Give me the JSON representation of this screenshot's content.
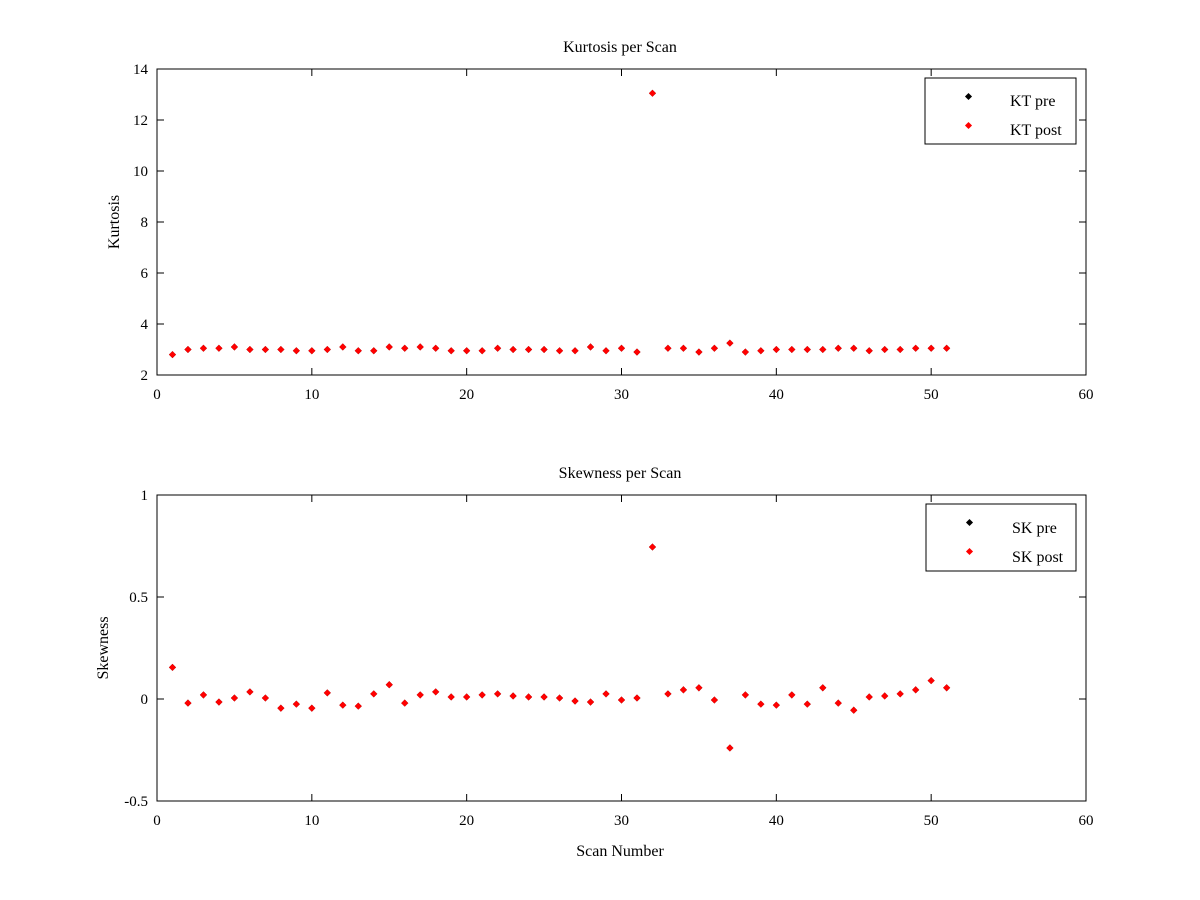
{
  "chart_data": [
    {
      "type": "scatter",
      "title": "Kurtosis per Scan",
      "xlabel": "",
      "ylabel": "Kurtosis",
      "xlim": [
        0,
        60
      ],
      "ylim": [
        2,
        14
      ],
      "xticks": [
        0,
        10,
        20,
        30,
        40,
        50,
        60
      ],
      "yticks": [
        2,
        4,
        6,
        8,
        10,
        12,
        14
      ],
      "legend_position": "top-right",
      "grid": false,
      "x": [
        1,
        2,
        3,
        4,
        5,
        6,
        7,
        8,
        9,
        10,
        11,
        12,
        13,
        14,
        15,
        16,
        17,
        18,
        19,
        20,
        21,
        22,
        23,
        24,
        25,
        26,
        27,
        28,
        29,
        30,
        31,
        32,
        33,
        34,
        35,
        36,
        37,
        38,
        39,
        40,
        41,
        42,
        43,
        44,
        45,
        46,
        47,
        48,
        49,
        50,
        51
      ],
      "series": [
        {
          "name": "KT pre",
          "color": "#000000",
          "values": [
            2.8,
            3.0,
            3.05,
            3.05,
            3.1,
            3.0,
            3.0,
            3.0,
            2.95,
            2.95,
            3.0,
            3.1,
            2.95,
            2.95,
            3.1,
            3.05,
            3.1,
            3.05,
            2.95,
            2.95,
            2.95,
            3.05,
            3.0,
            3.0,
            3.0,
            2.95,
            2.95,
            3.1,
            2.95,
            3.05,
            2.9,
            13.05,
            3.05,
            3.05,
            2.9,
            3.05,
            3.25,
            2.9,
            2.95,
            3.0,
            3.0,
            3.0,
            3.0,
            3.05,
            3.05,
            2.95,
            3.0,
            3.0,
            3.05,
            3.05,
            3.05
          ]
        },
        {
          "name": "KT post",
          "color": "#ff0000",
          "values": [
            2.8,
            3.0,
            3.05,
            3.05,
            3.1,
            3.0,
            3.0,
            3.0,
            2.95,
            2.95,
            3.0,
            3.1,
            2.95,
            2.95,
            3.1,
            3.05,
            3.1,
            3.05,
            2.95,
            2.95,
            2.95,
            3.05,
            3.0,
            3.0,
            3.0,
            2.95,
            2.95,
            3.1,
            2.95,
            3.05,
            2.9,
            13.05,
            3.05,
            3.05,
            2.9,
            3.05,
            3.25,
            2.9,
            2.95,
            3.0,
            3.0,
            3.0,
            3.0,
            3.05,
            3.05,
            2.95,
            3.0,
            3.0,
            3.05,
            3.05,
            3.05
          ]
        }
      ]
    },
    {
      "type": "scatter",
      "title": "Skewness per Scan",
      "xlabel": "Scan Number",
      "ylabel": "Skewness",
      "xlim": [
        0,
        60
      ],
      "ylim": [
        -0.5,
        1
      ],
      "xticks": [
        0,
        10,
        20,
        30,
        40,
        50,
        60
      ],
      "yticks": [
        -0.5,
        0,
        0.5,
        1
      ],
      "ytick_labels": [
        "-0.5",
        "0",
        "0.5",
        "1"
      ],
      "legend_position": "top-right",
      "grid": false,
      "x": [
        1,
        2,
        3,
        4,
        5,
        6,
        7,
        8,
        9,
        10,
        11,
        12,
        13,
        14,
        15,
        16,
        17,
        18,
        19,
        20,
        21,
        22,
        23,
        24,
        25,
        26,
        27,
        28,
        29,
        30,
        31,
        32,
        33,
        34,
        35,
        36,
        37,
        38,
        39,
        40,
        41,
        42,
        43,
        44,
        45,
        46,
        47,
        48,
        49,
        50,
        51
      ],
      "series": [
        {
          "name": "SK pre",
          "color": "#000000",
          "values": [
            0.155,
            -0.02,
            0.02,
            -0.015,
            0.005,
            0.035,
            0.005,
            -0.045,
            -0.025,
            -0.045,
            0.03,
            -0.03,
            -0.035,
            0.025,
            0.07,
            -0.02,
            0.02,
            0.035,
            0.01,
            0.01,
            0.02,
            0.025,
            0.015,
            0.01,
            0.01,
            0.005,
            -0.01,
            -0.015,
            0.025,
            -0.005,
            0.005,
            0.745,
            0.025,
            0.045,
            0.055,
            -0.005,
            -0.24,
            0.02,
            -0.025,
            -0.03,
            0.02,
            -0.025,
            0.055,
            -0.02,
            -0.055,
            0.01,
            0.015,
            0.025,
            0.045,
            0.09,
            0.055
          ]
        },
        {
          "name": "SK post",
          "color": "#ff0000",
          "values": [
            0.155,
            -0.02,
            0.02,
            -0.015,
            0.005,
            0.035,
            0.005,
            -0.045,
            -0.025,
            -0.045,
            0.03,
            -0.03,
            -0.035,
            0.025,
            0.07,
            -0.02,
            0.02,
            0.035,
            0.01,
            0.01,
            0.02,
            0.025,
            0.015,
            0.01,
            0.01,
            0.005,
            -0.01,
            -0.015,
            0.025,
            -0.005,
            0.005,
            0.745,
            0.025,
            0.045,
            0.055,
            -0.005,
            -0.24,
            0.02,
            -0.025,
            -0.03,
            0.02,
            -0.025,
            0.055,
            -0.02,
            -0.055,
            0.01,
            0.015,
            0.025,
            0.045,
            0.09,
            0.055
          ]
        }
      ]
    }
  ]
}
